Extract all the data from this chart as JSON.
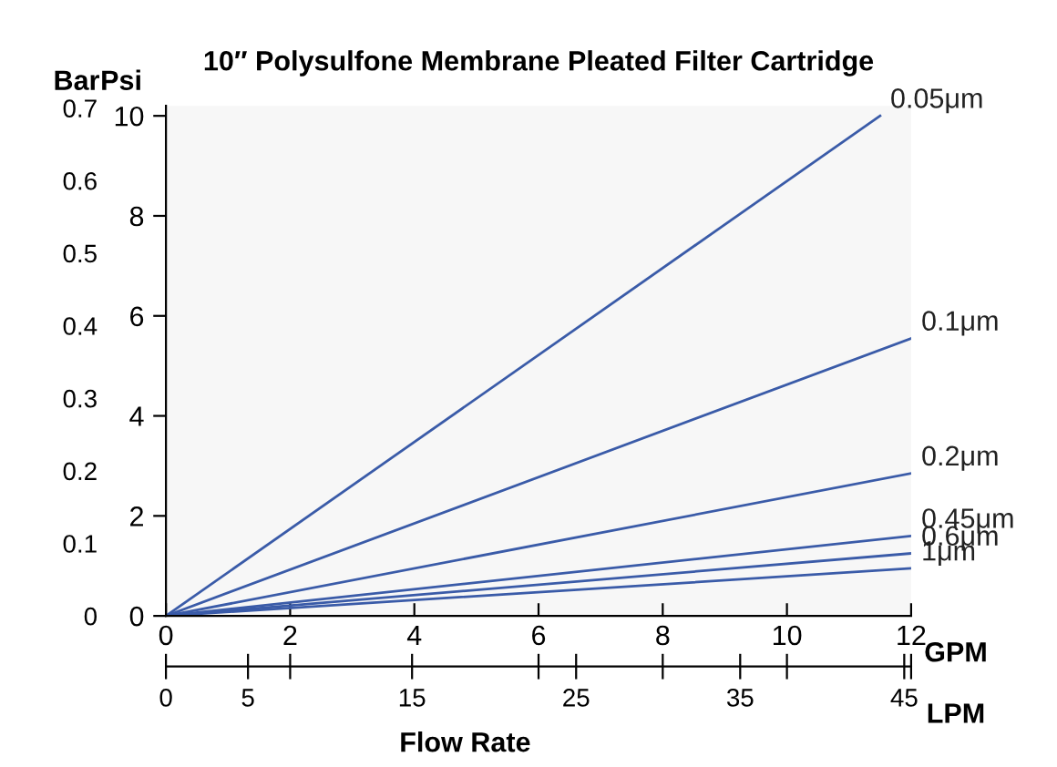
{
  "chart_data": {
    "type": "line",
    "title": "10″ Polysulfone Membrane Pleated Filter Cartridge",
    "xlabel": "GPM",
    "ylabel": "Psi",
    "y2label": "Bar",
    "x2label": "LPM",
    "annotations": [
      "Flow Rate"
    ],
    "series": [
      {
        "name": "0.05μm",
        "color": "#3a5ba8",
        "x": [
          0,
          11.5
        ],
        "values": [
          0,
          10
        ]
      },
      {
        "name": "0.1μm",
        "color": "#3a5ba8",
        "x": [
          0,
          12
        ],
        "values": [
          0,
          5.55
        ]
      },
      {
        "name": "0.2μm",
        "color": "#3a5ba8",
        "x": [
          0,
          12
        ],
        "values": [
          0,
          2.85
        ]
      },
      {
        "name": "0.45μm",
        "color": "#3a5ba8",
        "x": [
          0,
          12
        ],
        "values": [
          0,
          1.6
        ]
      },
      {
        "name": "0.6μm",
        "color": "#3a5ba8",
        "x": [
          0,
          12
        ],
        "values": [
          0,
          1.25
        ]
      },
      {
        "name": "1μm",
        "color": "#3a5ba8",
        "x": [
          0,
          12
        ],
        "values": [
          0,
          0.95
        ]
      }
    ],
    "xlim": [
      0,
      12
    ],
    "xticks": [
      0,
      2,
      4,
      6,
      8,
      10,
      12
    ],
    "ylim": [
      0,
      10.2
    ],
    "yticks": [
      0,
      2,
      4,
      6,
      8,
      10
    ],
    "y2lim": [
      0,
      0.703
    ],
    "y2ticks": [
      0,
      0.1,
      0.2,
      0.3,
      0.4,
      0.5,
      0.6,
      0.7
    ],
    "x2lim": [
      0,
      45.42
    ],
    "x2ticks": [
      0,
      5,
      {
        "value": 7.57,
        "label": null
      },
      15,
      {
        "value": 22.71,
        "label": null
      },
      25,
      {
        "value": 30.28,
        "label": null
      },
      35,
      {
        "value": 37.85,
        "label": null
      },
      45,
      {
        "value": 45.42,
        "label": null
      }
    ],
    "grid": false,
    "marker": "none",
    "line_style": "solid"
  }
}
